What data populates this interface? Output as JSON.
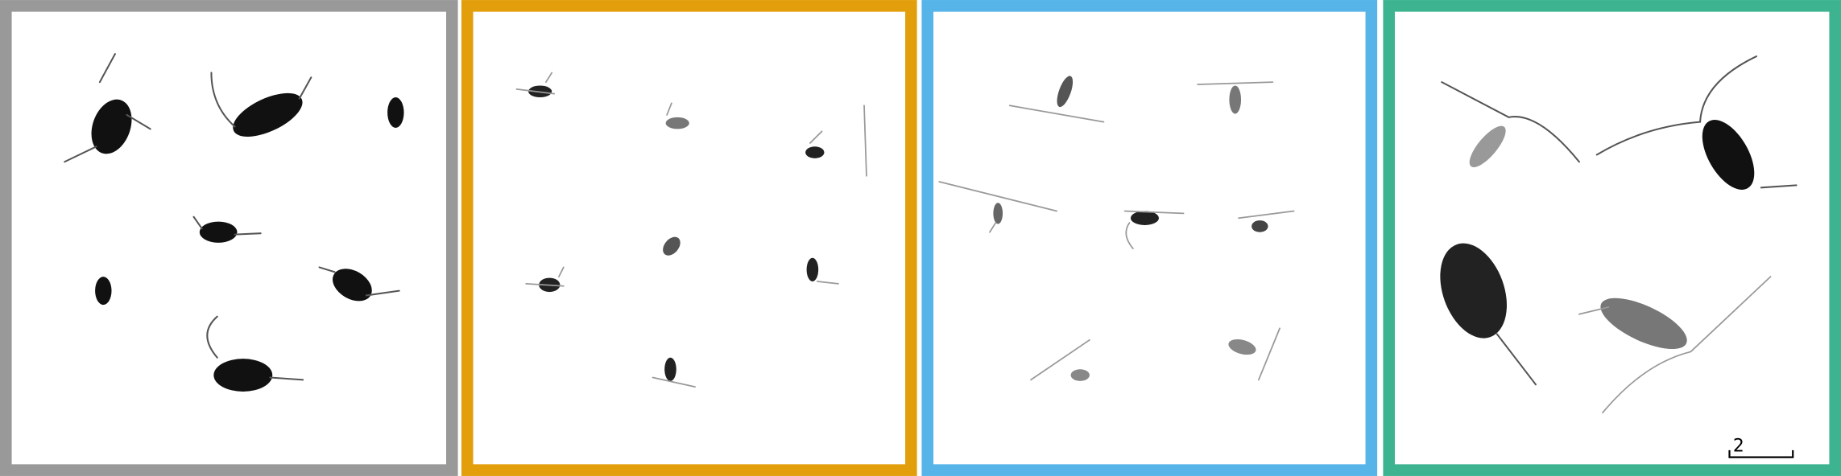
{
  "scale_bar": {
    "label": "2"
  }
}
